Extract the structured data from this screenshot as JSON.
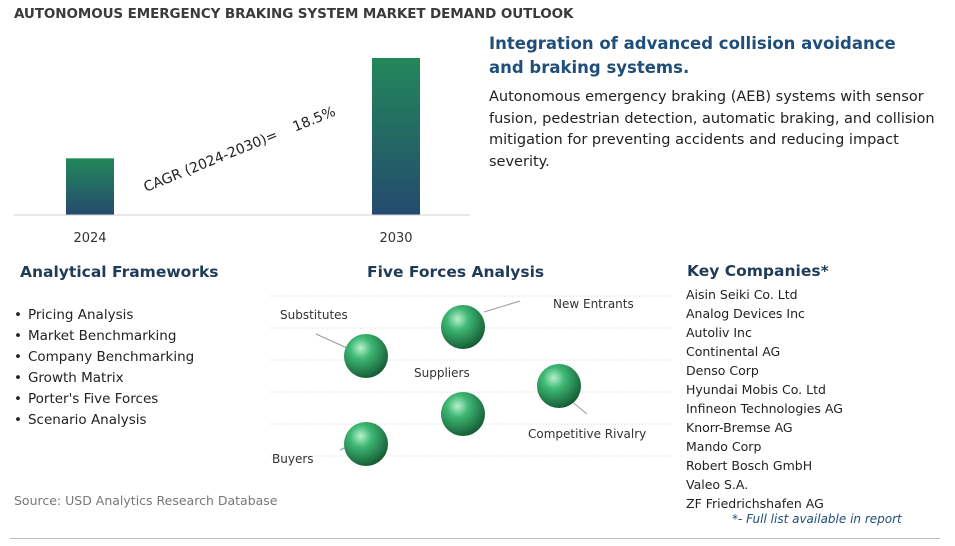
{
  "page_title": "AUTONOMOUS EMERGENCY BRAKING SYSTEM MARKET DEMAND OUTLOOK",
  "chart_data": {
    "type": "bar",
    "categories": [
      "2024",
      "2030"
    ],
    "values": [
      1.0,
      2.77
    ],
    "annotation": "CAGR (2024-2030)=    18.5%",
    "axis_labels_shown": false,
    "grid": false,
    "colors": {
      "bar_top": "#23875a",
      "bar_bottom": "#244a6e"
    }
  },
  "headline": "Integration of advanced collision avoidance and braking systems.",
  "summary": "Autonomous emergency braking (AEB) systems with sensor fusion, pedestrian detection, automatic braking, and collision mitigation for preventing accidents and reducing impact severity.",
  "frameworks": {
    "title": "Analytical Frameworks",
    "items": [
      "Pricing Analysis",
      "Market Benchmarking",
      "Company Benchmarking",
      "Growth Matrix",
      "Porter's Five Forces",
      "Scenario Analysis"
    ]
  },
  "five_forces": {
    "title": "Five Forces Analysis",
    "labels": {
      "substitutes": "Substitutes",
      "new_entrants": "New Entrants",
      "suppliers": "Suppliers",
      "competitive_rivalry": "Competitive Rivalry",
      "buyers": "Buyers"
    },
    "sphere_color": "#2e9a5e"
  },
  "companies": {
    "title": "Key Companies*",
    "items": [
      "Aisin Seiki Co. Ltd",
      "Analog Devices Inc",
      "Autoliv Inc",
      "Continental AG",
      "Denso Corp",
      "Hyundai Mobis Co. Ltd",
      "Infineon Technologies AG",
      "Knorr-Bremse AG",
      "Mando Corp",
      "Robert Bosch GmbH",
      "Valeo S.A.",
      "ZF Friedrichshafen AG"
    ],
    "note": "*- Full list available in report"
  },
  "source": "Source: USD Analytics Research Database"
}
